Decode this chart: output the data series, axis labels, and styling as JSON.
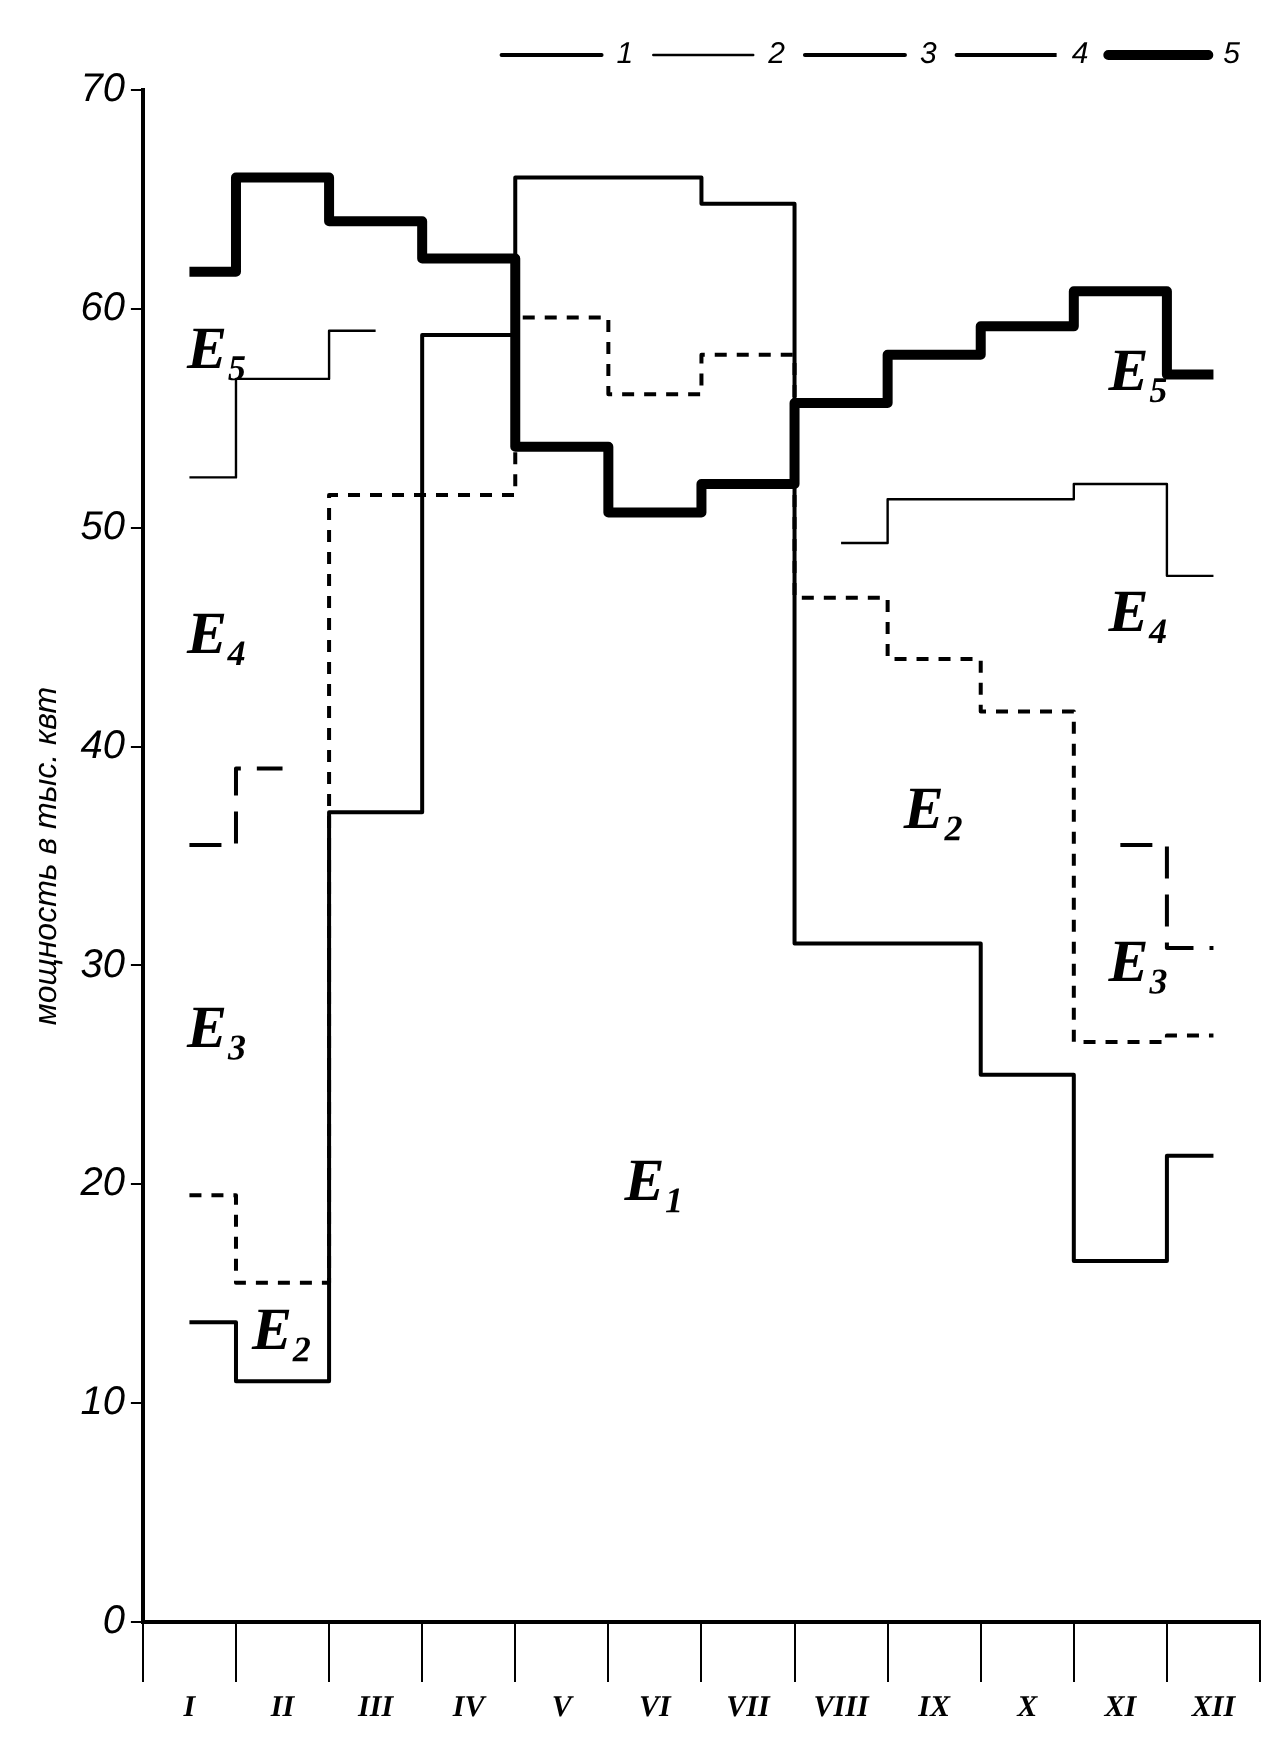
{
  "chart_data": {
    "type": "step",
    "ylabel": "мощность в тыс. квт",
    "categories": [
      "I",
      "II",
      "III",
      "IV",
      "V",
      "VI",
      "VII",
      "VIII",
      "IX",
      "X",
      "XI",
      "XII"
    ],
    "series": [
      {
        "name": "1",
        "color": "#000000",
        "line_style": "solid",
        "values": [
          13.7,
          11,
          37,
          58.8,
          66,
          66,
          64.8,
          31,
          31,
          25,
          16.5,
          21.3
        ]
      },
      {
        "name": "2",
        "color": "#000000",
        "line_style": "solid",
        "values": [
          52.3,
          56.8,
          59,
          null,
          null,
          null,
          null,
          49.3,
          51.3,
          51.3,
          52,
          47.8
        ]
      },
      {
        "name": "3",
        "color": "#000000",
        "line_style": "dashed",
        "values": [
          35.5,
          39,
          null,
          null,
          null,
          null,
          null,
          null,
          null,
          null,
          35.5,
          30.8
        ]
      },
      {
        "name": "4",
        "color": "#000000",
        "line_style": "dashed",
        "values": [
          19.5,
          15.5,
          51.5,
          51.5,
          59.6,
          56.1,
          57.9,
          46.8,
          44,
          41.6,
          26.5,
          26.8
        ]
      },
      {
        "name": "5",
        "color": "#000000",
        "line_style": "solid",
        "values": [
          61.7,
          66,
          64,
          62.3,
          53.7,
          50.7,
          52,
          55.7,
          57.9,
          59.2,
          60.8,
          57
        ]
      }
    ],
    "ylim": [
      0,
      70
    ],
    "yticks": [
      0,
      10,
      20,
      30,
      40,
      50,
      60,
      70
    ],
    "grid": false,
    "legend": "top right",
    "marker": "none",
    "annotations": [
      "E₅",
      "E₄",
      "E₃",
      "E₂",
      "E₁",
      "E₂",
      "E₄",
      "E₅",
      "E₃"
    ]
  }
}
